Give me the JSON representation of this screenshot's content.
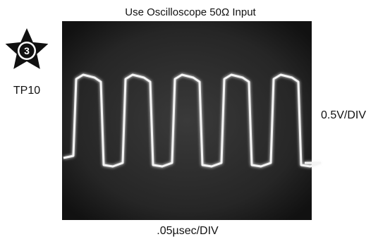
{
  "header": {
    "title": "Use Oscilloscope 50Ω Input"
  },
  "badge": {
    "number": "3",
    "label": "TP10"
  },
  "scale": {
    "vertical": "0.5V/DIV",
    "horizontal": ".05µsec/DIV"
  }
}
